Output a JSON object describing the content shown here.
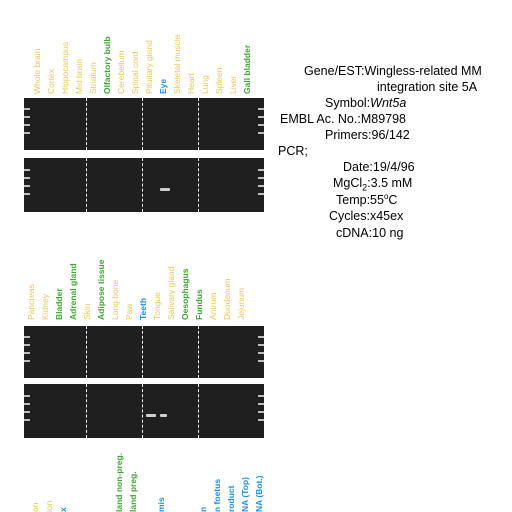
{
  "panel1_labels": [
    {
      "text": "Whole brain",
      "color": "y"
    },
    {
      "text": "Cortex",
      "color": "y"
    },
    {
      "text": "Hippocampus",
      "color": "y"
    },
    {
      "text": "Mid brain",
      "color": "y"
    },
    {
      "text": "Striatum",
      "color": "y"
    },
    {
      "text": "Olfactory bulb",
      "color": "g"
    },
    {
      "text": "Cerebellum",
      "color": "y"
    },
    {
      "text": "Spinal cord",
      "color": "y"
    },
    {
      "text": "Pituitary gland",
      "color": "y"
    },
    {
      "text": "Eye",
      "color": "b"
    },
    {
      "text": "Skeletal muscle",
      "color": "y"
    },
    {
      "text": "Heart",
      "color": "y"
    },
    {
      "text": "Lung",
      "color": "y"
    },
    {
      "text": "Spleen",
      "color": "y"
    },
    {
      "text": "Liver",
      "color": "y"
    },
    {
      "text": "Gall bladder",
      "color": "g"
    }
  ],
  "panel2_labels": [
    {
      "text": "Pancreas",
      "color": "y"
    },
    {
      "text": "Kidney",
      "color": "y"
    },
    {
      "text": "Bladder",
      "color": "g"
    },
    {
      "text": "Adrenal gland",
      "color": "g"
    },
    {
      "text": "Skin",
      "color": "y"
    },
    {
      "text": "Adipose tissue",
      "color": "g"
    },
    {
      "text": "Long bone",
      "color": "y"
    },
    {
      "text": "Paw",
      "color": "y"
    },
    {
      "text": "Teeth",
      "color": "b"
    },
    {
      "text": "Tongue",
      "color": "y"
    },
    {
      "text": "Salivary gland",
      "color": "y"
    },
    {
      "text": "Oesophagus",
      "color": "g"
    },
    {
      "text": "Fundus",
      "color": "g"
    },
    {
      "text": "Antrum",
      "color": "y"
    },
    {
      "text": "Duodenum",
      "color": "y"
    },
    {
      "text": "Jejunum",
      "color": "y"
    }
  ],
  "panel3_labels": [
    {
      "text": "on",
      "color": "y"
    },
    {
      "text": "ion",
      "color": "y"
    },
    {
      "text": "x",
      "color": "b"
    },
    {
      "text": "",
      "color": "y"
    },
    {
      "text": "",
      "color": "y"
    },
    {
      "text": "",
      "color": "y"
    },
    {
      "text": "land non-preg.",
      "color": "g"
    },
    {
      "text": "land preg.",
      "color": "g"
    },
    {
      "text": "",
      "color": "y"
    },
    {
      "text": "mis",
      "color": "b"
    },
    {
      "text": "",
      "color": "y"
    },
    {
      "text": "",
      "color": "y"
    },
    {
      "text": "n",
      "color": "b"
    },
    {
      "text": "n foetus",
      "color": "b"
    },
    {
      "text": "roduct",
      "color": "b"
    },
    {
      "text": "NA (Top)",
      "color": "b"
    },
    {
      "text": "NA (Bot.)",
      "color": "b"
    }
  ],
  "info": {
    "gene_key": "Gene/EST:",
    "gene_val_1": "Wingless-related MM",
    "gene_val_2": "integration site 5A",
    "symbol_key": "Symbol:",
    "symbol_val": "Wnt5a",
    "embl_key": "EMBL Ac. No.:",
    "embl_val": "M89798",
    "primers_key": "Primers:",
    "primers_val": "96/142",
    "pcr_key": "PCR;",
    "date_key": "Date:",
    "date_val": "19/4/96",
    "mgcl_key_a": "MgCl",
    "mgcl_key_sub": "2",
    "mgcl_key_b": ":",
    "mgcl_val": "3.5 mM",
    "temp_key": "Temp:",
    "temp_val_a": "55",
    "temp_val_sup": "o",
    "temp_val_b": "C",
    "cycles_key": "Cycles:",
    "cycles_val": "x45ex",
    "cdna_key": "cDNA:",
    "cdna_val": "10 ng"
  },
  "colors": {
    "yellow": "#e8c65a",
    "green": "#3fa533",
    "blue": "#1e8fe0",
    "gel": "#1f1f1f"
  }
}
